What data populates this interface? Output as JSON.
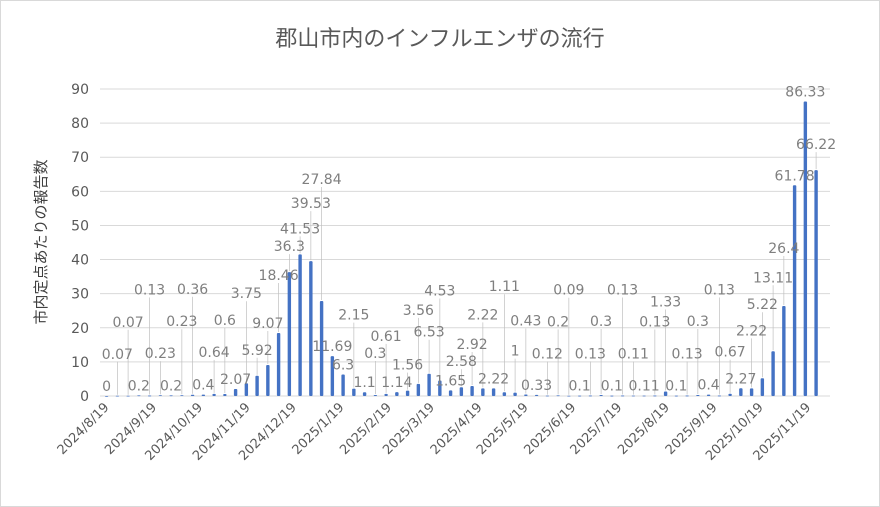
{
  "chart_data": {
    "type": "bar",
    "title": "郡山市内のインフルエンザの流行",
    "ylabel": "市内定点あたりの報告数",
    "xlabel": "",
    "ylim": [
      0,
      90
    ],
    "yticks": [
      0,
      10,
      20,
      30,
      40,
      50,
      60,
      70,
      80,
      90
    ],
    "grid": true,
    "legend": "none",
    "color": "#4472C4",
    "start_date": "2024-08-19",
    "interval_days": 7,
    "xtick_labels": [
      "2024/8/19",
      "2024/9/19",
      "2024/10/19",
      "2024/11/19",
      "2024/12/19",
      "2025/1/19",
      "2025/2/19",
      "2025/3/19",
      "2025/4/19",
      "2025/5/19",
      "2025/6/19",
      "2025/7/19",
      "2025/8/19",
      "2025/9/19",
      "2025/10/19",
      "2025/11/19"
    ],
    "values": [
      0,
      0.07,
      0.07,
      0.2,
      0.13,
      0.23,
      0.2,
      0.23,
      0.36,
      0.4,
      0.64,
      0.6,
      2.07,
      3.75,
      5.92,
      9.07,
      18.46,
      36.3,
      41.53,
      39.53,
      27.84,
      11.69,
      6.3,
      2.15,
      1.1,
      0.3,
      0.61,
      1.14,
      1.56,
      3.56,
      6.53,
      4.53,
      1.65,
      2.58,
      2.92,
      2.22,
      2.22,
      1.11,
      1.0,
      0.43,
      0.33,
      0.12,
      0.2,
      0.09,
      0.1,
      0.13,
      0.3,
      0.1,
      0.13,
      0.11,
      0.11,
      0.13,
      1.33,
      0.1,
      0.13,
      0.3,
      0.4,
      0.13,
      0.67,
      2.27,
      2.22,
      5.22,
      13.11,
      26.4,
      61.78,
      86.33,
      66.22
    ]
  }
}
